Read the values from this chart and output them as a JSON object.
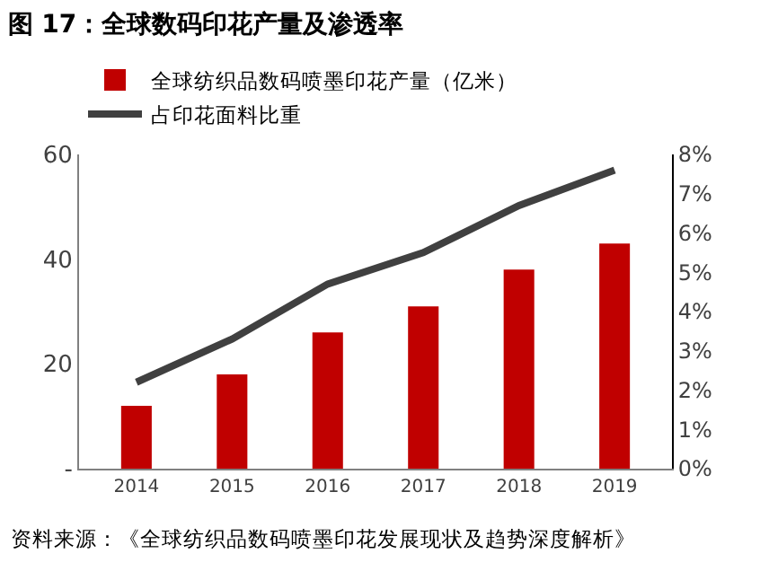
{
  "chart_data": {
    "type": "bar",
    "title": "图 17：全球数码印花产量及渗透率",
    "categories": [
      "2014",
      "2015",
      "2016",
      "2017",
      "2018",
      "2019"
    ],
    "series": [
      {
        "name": "全球纺织品数码喷墨印花产量（亿米）",
        "color": "#c00000",
        "values": [
          12,
          18,
          26,
          31,
          38,
          43
        ]
      },
      {
        "name": "占印花面料比重",
        "type": "line",
        "axis": "y2",
        "color": "#404040",
        "values": [
          2.2,
          3.3,
          4.7,
          5.5,
          6.7,
          7.6
        ]
      }
    ],
    "ylim": [
      0,
      60
    ],
    "yticks": [
      {
        "value": 0,
        "label": "-"
      },
      20,
      40,
      60
    ],
    "y2lim": [
      0,
      8
    ],
    "y2ticks": [
      {
        "value": 0,
        "label": "0%"
      },
      {
        "value": 1,
        "label": "1%"
      },
      {
        "value": 2,
        "label": "2%"
      },
      {
        "value": 3,
        "label": "3%"
      },
      {
        "value": 4,
        "label": "4%"
      },
      {
        "value": 5,
        "label": "5%"
      },
      {
        "value": 6,
        "label": "6%"
      },
      {
        "value": 7,
        "label": "7%"
      },
      {
        "value": 8,
        "label": "8%"
      }
    ],
    "grid": false,
    "legend": "top left",
    "marker": "none",
    "line_style": "solid",
    "annotations": [
      "资料来源：《全球纺织品数码喷墨印花发展现状及趋势深度解析》"
    ]
  }
}
